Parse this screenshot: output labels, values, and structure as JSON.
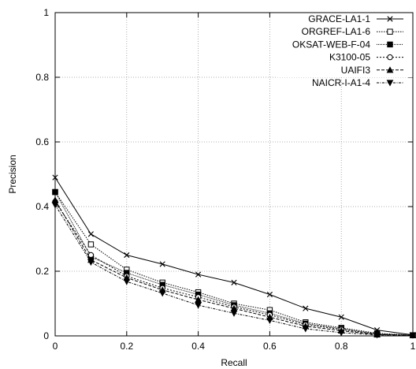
{
  "chart_data": {
    "type": "line",
    "title": "",
    "xlabel": "Recall",
    "ylabel": "Precision",
    "xlim": [
      0,
      1
    ],
    "ylim": [
      0,
      1
    ],
    "x_ticks": [
      "0",
      "0.2",
      "0.4",
      "0.6",
      "0.8",
      "1"
    ],
    "y_ticks": [
      "0",
      "0.2",
      "0.4",
      "0.6",
      "0.8",
      "1"
    ],
    "grid": true,
    "legend_position": "top-right",
    "x": [
      0,
      0.1,
      0.2,
      0.3,
      0.4,
      0.5,
      0.6,
      0.7,
      0.8,
      0.9,
      1.0
    ],
    "series": [
      {
        "name": "GRACE-LA1-1",
        "marker": "cross",
        "values": [
          0.49,
          0.315,
          0.25,
          0.222,
          0.19,
          0.165,
          0.128,
          0.085,
          0.058,
          0.018,
          0.003
        ]
      },
      {
        "name": "ORGREF-LA1-6",
        "marker": "square-open",
        "values": [
          0.445,
          0.283,
          0.205,
          0.165,
          0.135,
          0.1,
          0.08,
          0.042,
          0.025,
          0.008,
          0.002
        ]
      },
      {
        "name": "OKSAT-WEB-F-04",
        "marker": "square-filled",
        "values": [
          0.445,
          0.245,
          0.195,
          0.158,
          0.128,
          0.095,
          0.07,
          0.038,
          0.022,
          0.006,
          0.002
        ]
      },
      {
        "name": "K3100-05",
        "marker": "circle-open",
        "values": [
          0.415,
          0.25,
          0.185,
          0.148,
          0.12,
          0.09,
          0.065,
          0.035,
          0.02,
          0.005,
          0.002
        ]
      },
      {
        "name": "UAIFI3",
        "marker": "triangle-up",
        "values": [
          0.42,
          0.235,
          0.18,
          0.142,
          0.112,
          0.085,
          0.058,
          0.03,
          0.016,
          0.004,
          0.002
        ]
      },
      {
        "name": "NAICR-I-A1-4",
        "marker": "triangle-down",
        "values": [
          0.405,
          0.228,
          0.168,
          0.132,
          0.095,
          0.07,
          0.048,
          0.022,
          0.01,
          0.003,
          0.002
        ]
      }
    ]
  }
}
